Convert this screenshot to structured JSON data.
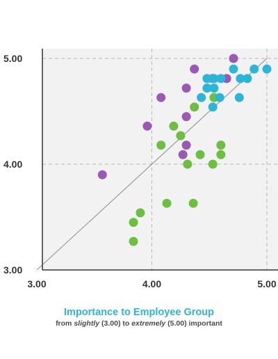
{
  "chart_data": {
    "type": "scatter",
    "xlim": [
      3.0,
      5.0
    ],
    "ylim": [
      3.0,
      5.0
    ],
    "x_ticks": [
      "3.00",
      "4.00",
      "5.00"
    ],
    "y_ticks": [
      "3.00",
      "4.00",
      "5.00"
    ],
    "xlabel": "Importance to Employee Group",
    "xlabel_sub": [
      "from",
      "slightly",
      "(3.00) to",
      "extremely",
      "(5.00) important"
    ],
    "grid": "dashed at 4.00 and 5.00",
    "reference_line": "diagonal y = x",
    "series": [
      {
        "color": "#9b59b6",
        "points": [
          [
            3.57,
            3.9
          ],
          [
            3.96,
            4.36
          ],
          [
            4.08,
            4.63
          ],
          [
            4.27,
            4.09
          ],
          [
            4.3,
            4.18
          ],
          [
            4.3,
            4.45
          ],
          [
            4.3,
            4.72
          ],
          [
            4.37,
            4.9
          ],
          [
            4.53,
            4.81
          ],
          [
            4.65,
            4.81
          ],
          [
            4.71,
            5.0
          ]
        ]
      },
      {
        "color": "#6cbf3f",
        "points": [
          [
            3.84,
            3.27
          ],
          [
            3.84,
            3.45
          ],
          [
            3.9,
            3.54
          ],
          [
            4.08,
            4.18
          ],
          [
            4.13,
            3.63
          ],
          [
            4.19,
            4.36
          ],
          [
            4.25,
            4.27
          ],
          [
            4.31,
            4.0
          ],
          [
            4.36,
            3.63
          ],
          [
            4.37,
            4.54
          ],
          [
            4.42,
            4.09
          ],
          [
            4.53,
            4.0
          ],
          [
            4.54,
            4.63
          ],
          [
            4.6,
            4.09
          ],
          [
            4.6,
            4.18
          ]
        ]
      },
      {
        "color": "#29b6d8",
        "points": [
          [
            4.43,
            4.63
          ],
          [
            4.48,
            4.72
          ],
          [
            4.48,
            4.81
          ],
          [
            4.53,
            4.54
          ],
          [
            4.54,
            4.72
          ],
          [
            4.54,
            4.81
          ],
          [
            4.59,
            4.63
          ],
          [
            4.6,
            4.81
          ],
          [
            4.71,
            4.9
          ],
          [
            4.76,
            4.63
          ],
          [
            4.77,
            4.81
          ],
          [
            4.83,
            4.81
          ],
          [
            4.89,
            4.9
          ],
          [
            5.0,
            4.9
          ]
        ]
      }
    ]
  }
}
